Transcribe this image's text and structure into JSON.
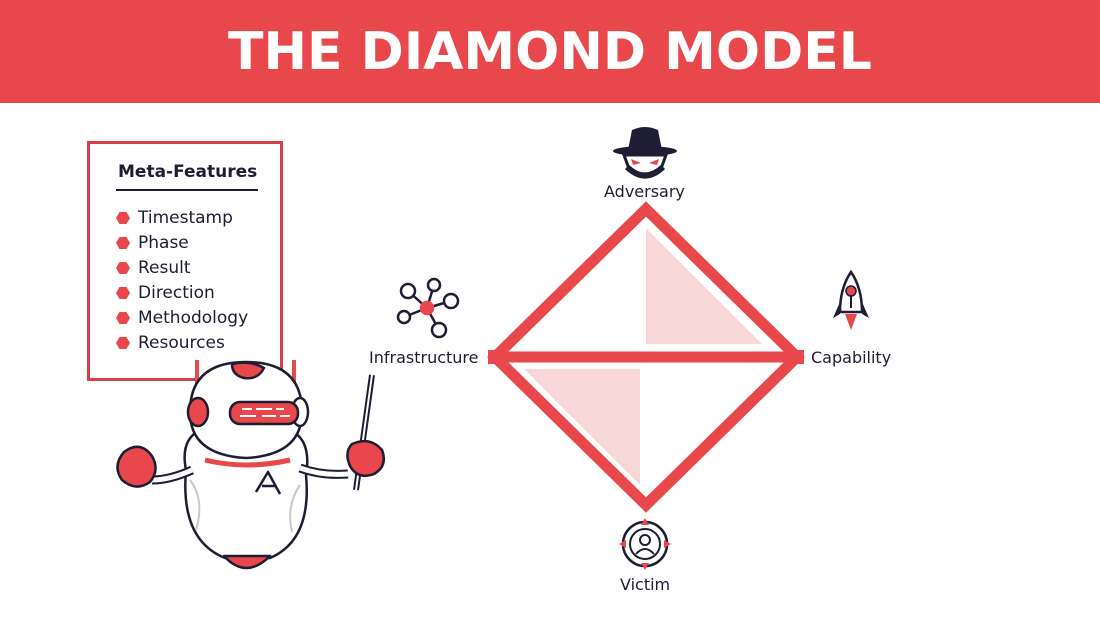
{
  "banner": {
    "title": "THE DIAMOND MODEL"
  },
  "meta_features": {
    "title": "Meta-Features",
    "items": [
      "Timestamp",
      "Phase",
      "Result",
      "Direction",
      "Methodology",
      "Resources"
    ]
  },
  "diamond": {
    "nodes": {
      "adversary": {
        "label": "Adversary",
        "icon": "spy-hat-icon"
      },
      "capability": {
        "label": "Capability",
        "icon": "rocket-icon"
      },
      "victim": {
        "label": "Victim",
        "icon": "target-person-icon"
      },
      "infrastructure": {
        "label": "Infrastructure",
        "icon": "network-nodes-icon"
      }
    }
  },
  "colors": {
    "accent_red": "#e8474b",
    "dark_navy": "#1f1d33",
    "light_pink": "#f8d7d8",
    "white": "#ffffff"
  },
  "mascot": {
    "icon": "robot-mascot-icon"
  }
}
